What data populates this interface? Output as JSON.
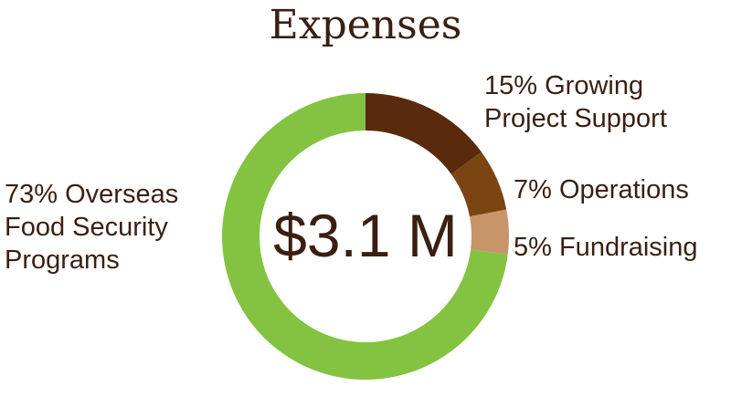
{
  "chart_data": {
    "type": "pie",
    "title": "Expenses",
    "center_label": "$3.1 M",
    "legend_placement": "labels beside slices",
    "categories": [
      "Growing Project Support",
      "Operations",
      "Fundraising",
      "Overseas Food Security Programs"
    ],
    "values": [
      15,
      7,
      5,
      73
    ],
    "colors": [
      "#5a2a0c",
      "#7a4512",
      "#c8956a",
      "#84c341"
    ],
    "slice_labels": {
      "growing": [
        "15% Growing",
        "Project Support"
      ],
      "operations": "7% Operations",
      "fundraising": "5% Fundraising",
      "overseas": [
        "73% Overseas",
        "Food Security",
        "Programs"
      ]
    }
  }
}
